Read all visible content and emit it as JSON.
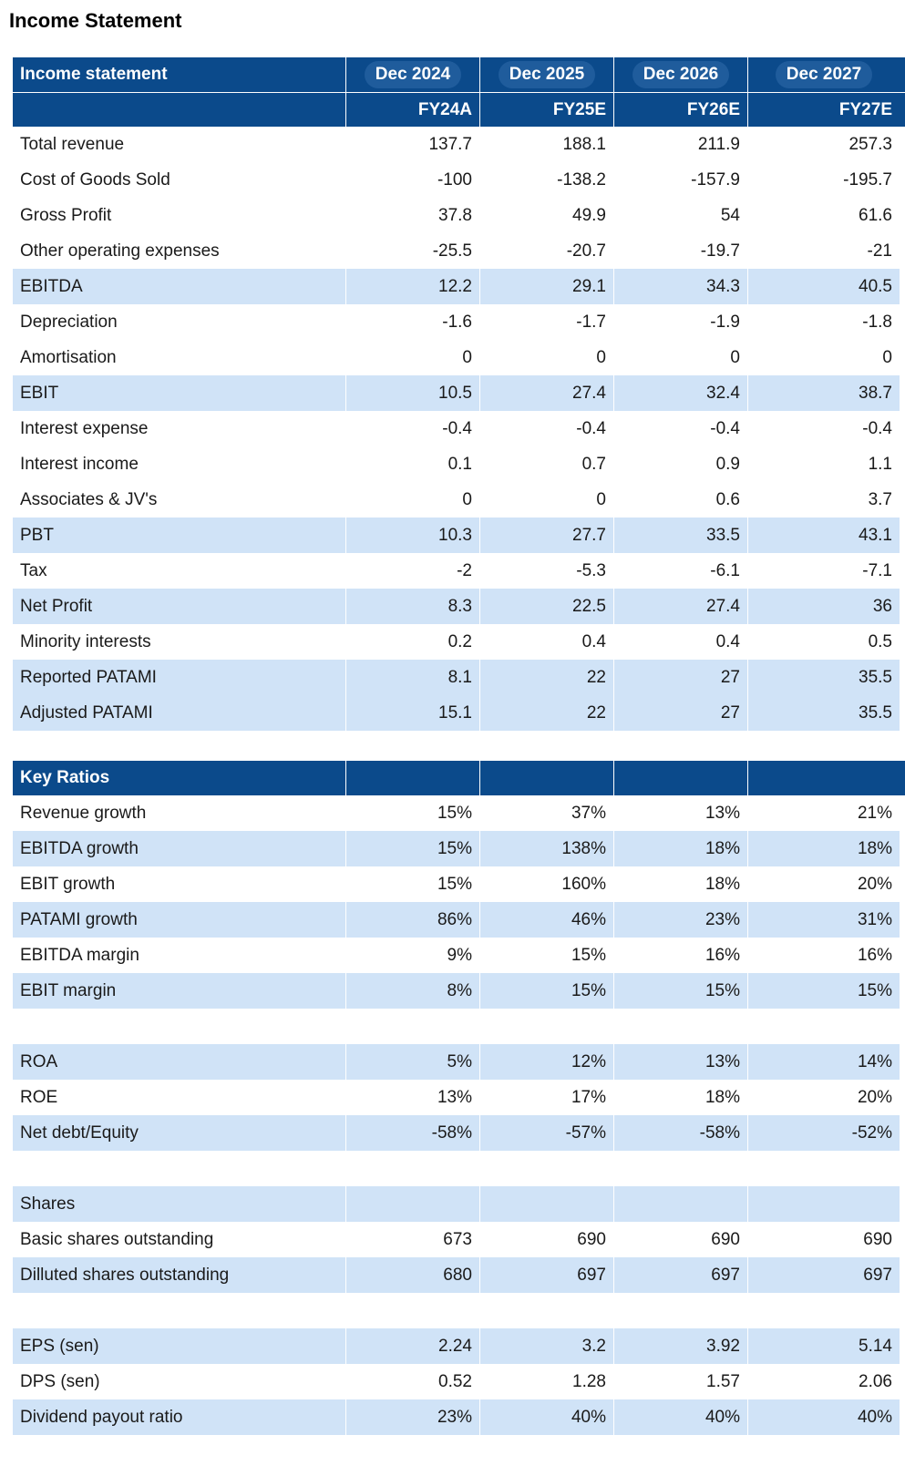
{
  "title": "Income Statement",
  "income": {
    "header_label": "Income statement",
    "periods": [
      "Dec 2024",
      "Dec 2025",
      "Dec 2026",
      "Dec 2027"
    ],
    "fiscal": [
      "FY24A",
      "FY25E",
      "FY26E",
      "FY27E"
    ],
    "rows": [
      {
        "label": "Total revenue",
        "values": [
          "137.7",
          "188.1",
          "211.9",
          "257.3"
        ],
        "highlight": false
      },
      {
        "label": "Cost of Goods Sold",
        "values": [
          "-100",
          "-138.2",
          "-157.9",
          "-195.7"
        ],
        "highlight": false
      },
      {
        "label": "Gross Profit",
        "values": [
          "37.8",
          "49.9",
          "54",
          "61.6"
        ],
        "highlight": false
      },
      {
        "label": "Other operating expenses",
        "values": [
          "-25.5",
          "-20.7",
          "-19.7",
          "-21"
        ],
        "highlight": false
      },
      {
        "label": "EBITDA",
        "values": [
          "12.2",
          "29.1",
          "34.3",
          "40.5"
        ],
        "highlight": true
      },
      {
        "label": "Depreciation",
        "values": [
          "-1.6",
          "-1.7",
          "-1.9",
          "-1.8"
        ],
        "highlight": false
      },
      {
        "label": "Amortisation",
        "values": [
          "0",
          "0",
          "0",
          "0"
        ],
        "highlight": false
      },
      {
        "label": "EBIT",
        "values": [
          "10.5",
          "27.4",
          "32.4",
          "38.7"
        ],
        "highlight": true
      },
      {
        "label": "Interest expense",
        "values": [
          "-0.4",
          "-0.4",
          "-0.4",
          "-0.4"
        ],
        "highlight": false
      },
      {
        "label": "Interest income",
        "values": [
          "0.1",
          "0.7",
          "0.9",
          "1.1"
        ],
        "highlight": false
      },
      {
        "label": "Associates & JV's",
        "values": [
          "0",
          "0",
          "0.6",
          "3.7"
        ],
        "highlight": false
      },
      {
        "label": "PBT",
        "values": [
          "10.3",
          "27.7",
          "33.5",
          "43.1"
        ],
        "highlight": true
      },
      {
        "label": "Tax",
        "values": [
          "-2",
          "-5.3",
          "-6.1",
          "-7.1"
        ],
        "highlight": false
      },
      {
        "label": "Net Profit",
        "values": [
          "8.3",
          "22.5",
          "27.4",
          "36"
        ],
        "highlight": true
      },
      {
        "label": "Minority interests",
        "values": [
          "0.2",
          "0.4",
          "0.4",
          "0.5"
        ],
        "highlight": false
      },
      {
        "label": "Reported PATAMI",
        "values": [
          "8.1",
          "22",
          "27",
          "35.5"
        ],
        "highlight": true
      },
      {
        "label": "Adjusted PATAMI",
        "values": [
          "15.1",
          "22",
          "27",
          "35.5"
        ],
        "highlight": true
      }
    ]
  },
  "ratios": {
    "header_label": "Key Ratios",
    "rows": [
      {
        "label": "Revenue growth",
        "values": [
          "15%",
          "37%",
          "13%",
          "21%"
        ],
        "highlight": false
      },
      {
        "label": "EBITDA growth",
        "values": [
          "15%",
          "138%",
          "18%",
          "18%"
        ],
        "highlight": true
      },
      {
        "label": "EBIT growth",
        "values": [
          "15%",
          "160%",
          "18%",
          "20%"
        ],
        "highlight": false
      },
      {
        "label": "PATAMI growth",
        "values": [
          "86%",
          "46%",
          "23%",
          "31%"
        ],
        "highlight": true
      },
      {
        "label": "EBITDA margin",
        "values": [
          "9%",
          "15%",
          "16%",
          "16%"
        ],
        "highlight": false
      },
      {
        "label": "EBIT margin",
        "values": [
          "8%",
          "15%",
          "15%",
          "15%"
        ],
        "highlight": true
      }
    ]
  },
  "returns": {
    "rows": [
      {
        "label": "ROA",
        "values": [
          "5%",
          "12%",
          "13%",
          "14%"
        ],
        "highlight": true
      },
      {
        "label": "ROE",
        "values": [
          "13%",
          "17%",
          "18%",
          "20%"
        ],
        "highlight": false
      },
      {
        "label": "Net debt/Equity",
        "values": [
          "-58%",
          "-57%",
          "-58%",
          "-52%"
        ],
        "highlight": true
      }
    ]
  },
  "shares": {
    "rows": [
      {
        "label": "Shares",
        "values": [
          "",
          "",
          "",
          ""
        ],
        "highlight": true
      },
      {
        "label": "Basic shares outstanding",
        "values": [
          "673",
          "690",
          "690",
          "690"
        ],
        "highlight": false
      },
      {
        "label": "Dilluted shares outstanding",
        "values": [
          "680",
          "697",
          "697",
          "697"
        ],
        "highlight": true
      }
    ]
  },
  "pershare": {
    "rows": [
      {
        "label": "EPS (sen)",
        "values": [
          "2.24",
          "3.2",
          "3.92",
          "5.14"
        ],
        "highlight": true
      },
      {
        "label": "DPS (sen)",
        "values": [
          "0.52",
          "1.28",
          "1.57",
          "2.06"
        ],
        "highlight": false
      },
      {
        "label": "Dividend payout ratio",
        "values": [
          "23%",
          "40%",
          "40%",
          "40%"
        ],
        "highlight": true
      }
    ]
  }
}
